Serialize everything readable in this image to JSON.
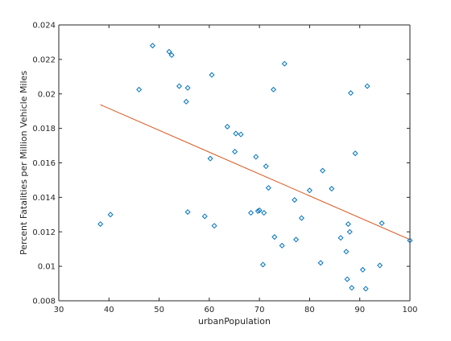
{
  "chart_data": {
    "type": "scatter",
    "xlabel": "urbanPopulation",
    "ylabel": "Percent Fatalities per Million Vehicle Miles",
    "xlim": [
      30,
      100
    ],
    "ylim": [
      0.008,
      0.024
    ],
    "x_ticks": [
      30,
      40,
      50,
      60,
      70,
      80,
      90,
      100
    ],
    "y_ticks": [
      0.008,
      0.01,
      0.012,
      0.014,
      0.016,
      0.018,
      0.02,
      0.022,
      0.024
    ],
    "x_tick_labels": [
      "30",
      "40",
      "50",
      "60",
      "70",
      "80",
      "90",
      "100"
    ],
    "y_tick_labels": [
      "0.008",
      "0.01",
      "0.012",
      "0.014",
      "0.016",
      "0.018",
      "0.02",
      "0.022",
      "0.024"
    ],
    "grid": false,
    "colors": {
      "points": "#0072bd",
      "fit_line": "#d95319",
      "axes": "#262626"
    },
    "series": [
      {
        "type": "scatter",
        "marker": "diamond",
        "x": [
          38.3,
          40.3,
          46.0,
          48.7,
          52.0,
          52.5,
          54.0,
          55.4,
          55.7,
          55.7,
          59.1,
          60.2,
          60.5,
          61.0,
          63.6,
          65.1,
          65.3,
          66.3,
          68.3,
          69.3,
          69.7,
          70.0,
          70.7,
          70.9,
          71.3,
          71.8,
          72.8,
          73.0,
          74.5,
          75.0,
          77.0,
          77.3,
          78.4,
          80.0,
          82.2,
          82.6,
          84.4,
          86.2,
          87.3,
          87.5,
          87.7,
          88.0,
          88.2,
          88.4,
          89.1,
          90.6,
          91.2,
          91.5,
          94.0,
          94.4,
          100.0
        ],
        "y": [
          0.01245,
          0.013,
          0.02025,
          0.0228,
          0.02245,
          0.02225,
          0.02045,
          0.01955,
          0.02035,
          0.01315,
          0.0129,
          0.01625,
          0.0211,
          0.01235,
          0.0181,
          0.01665,
          0.0177,
          0.01765,
          0.0131,
          0.01635,
          0.0132,
          0.01325,
          0.0101,
          0.0131,
          0.0158,
          0.01455,
          0.02025,
          0.0117,
          0.0112,
          0.02175,
          0.01385,
          0.01155,
          0.0128,
          0.0144,
          0.0102,
          0.01555,
          0.0145,
          0.01165,
          0.01085,
          0.00925,
          0.01245,
          0.012,
          0.02005,
          0.00875,
          0.01655,
          0.0098,
          0.0087,
          0.02045,
          0.01005,
          0.0125,
          0.0115
        ]
      },
      {
        "type": "line",
        "x": [
          38.3,
          100.0
        ],
        "y": [
          0.01937,
          0.01155
        ]
      }
    ]
  }
}
